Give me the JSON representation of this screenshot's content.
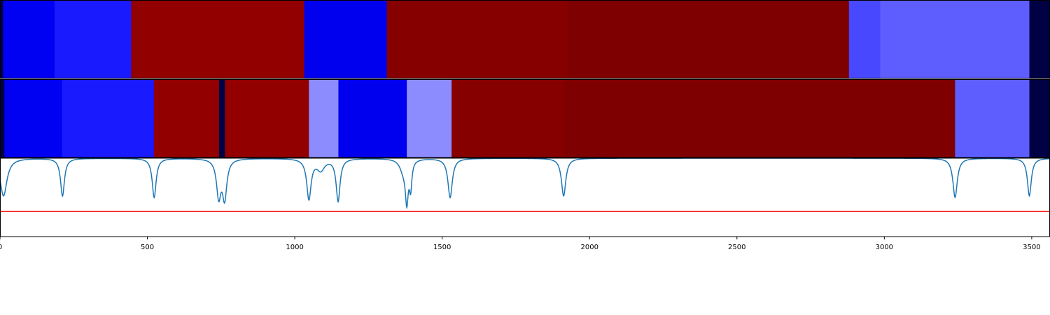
{
  "chart_data": [
    {
      "type": "heatmap",
      "title": "",
      "xlim": [
        0,
        3562
      ],
      "segments": [
        {
          "start": 0,
          "end": 10,
          "color": "#000044"
        },
        {
          "start": 10,
          "end": 185,
          "color": "#0000f2"
        },
        {
          "start": 185,
          "end": 445,
          "color": "#1a1aff"
        },
        {
          "start": 445,
          "end": 1032,
          "color": "#920000"
        },
        {
          "start": 1032,
          "end": 1312,
          "color": "#0000ef"
        },
        {
          "start": 1312,
          "end": 1925,
          "color": "#870000"
        },
        {
          "start": 1925,
          "end": 2880,
          "color": "#7f0000"
        },
        {
          "start": 2880,
          "end": 2986,
          "color": "#4848ff"
        },
        {
          "start": 2986,
          "end": 3492,
          "color": "#5e5eff"
        },
        {
          "start": 3492,
          "end": 3562,
          "color": "#000044"
        }
      ]
    },
    {
      "type": "heatmap",
      "title": "",
      "xlim": [
        0,
        3562
      ],
      "segments": [
        {
          "start": 0,
          "end": 15,
          "color": "#000044"
        },
        {
          "start": 15,
          "end": 210,
          "color": "#0000f2"
        },
        {
          "start": 210,
          "end": 522,
          "color": "#1a1aff"
        },
        {
          "start": 522,
          "end": 743,
          "color": "#920000"
        },
        {
          "start": 743,
          "end": 763,
          "color": "#000044"
        },
        {
          "start": 763,
          "end": 1048,
          "color": "#920000"
        },
        {
          "start": 1048,
          "end": 1148,
          "color": "#8c8cff"
        },
        {
          "start": 1148,
          "end": 1380,
          "color": "#0000ef"
        },
        {
          "start": 1380,
          "end": 1532,
          "color": "#8c8cff"
        },
        {
          "start": 1532,
          "end": 1912,
          "color": "#870000"
        },
        {
          "start": 1912,
          "end": 3240,
          "color": "#7f0000"
        },
        {
          "start": 3240,
          "end": 3492,
          "color": "#5e5eff"
        },
        {
          "start": 3492,
          "end": 3562,
          "color": "#000044"
        }
      ]
    },
    {
      "type": "line",
      "title": "",
      "xlabel": "",
      "ylabel": "",
      "xlim": [
        0,
        3562
      ],
      "ylim": [
        0,
        1
      ],
      "xticks": [
        0,
        500,
        1000,
        1500,
        2000,
        2500,
        3000,
        3500
      ],
      "xtick_labels": [
        "0",
        "500",
        "1000",
        "1500",
        "2000",
        "2500",
        "3000",
        "3500"
      ],
      "series": [
        {
          "color": "#1f77b4",
          "baseline": 1.0,
          "dips": [
            {
              "x": 12,
              "value": 0.52,
              "width": 14
            },
            {
              "x": 212,
              "value": 0.52,
              "width": 8
            },
            {
              "x": 523,
              "value": 0.5,
              "width": 8
            },
            {
              "x": 742,
              "value": 0.53,
              "width": 9
            },
            {
              "x": 762,
              "value": 0.51,
              "width": 9
            },
            {
              "x": 1048,
              "value": 0.49,
              "width": 9
            },
            {
              "x": 1088,
              "value": 0.86,
              "width": 16
            },
            {
              "x": 1147,
              "value": 0.46,
              "width": 8
            },
            {
              "x": 1368,
              "value": 0.86,
              "width": 14
            },
            {
              "x": 1380,
              "value": 0.5,
              "width": 6
            },
            {
              "x": 1393,
              "value": 0.66,
              "width": 5
            },
            {
              "x": 1527,
              "value": 0.5,
              "width": 9
            },
            {
              "x": 1912,
              "value": 0.52,
              "width": 9
            },
            {
              "x": 3240,
              "value": 0.5,
              "width": 9
            },
            {
              "x": 3492,
              "value": 0.52,
              "width": 8
            }
          ]
        },
        {
          "color": "#ff0000",
          "constant": 0.32
        }
      ]
    }
  ]
}
